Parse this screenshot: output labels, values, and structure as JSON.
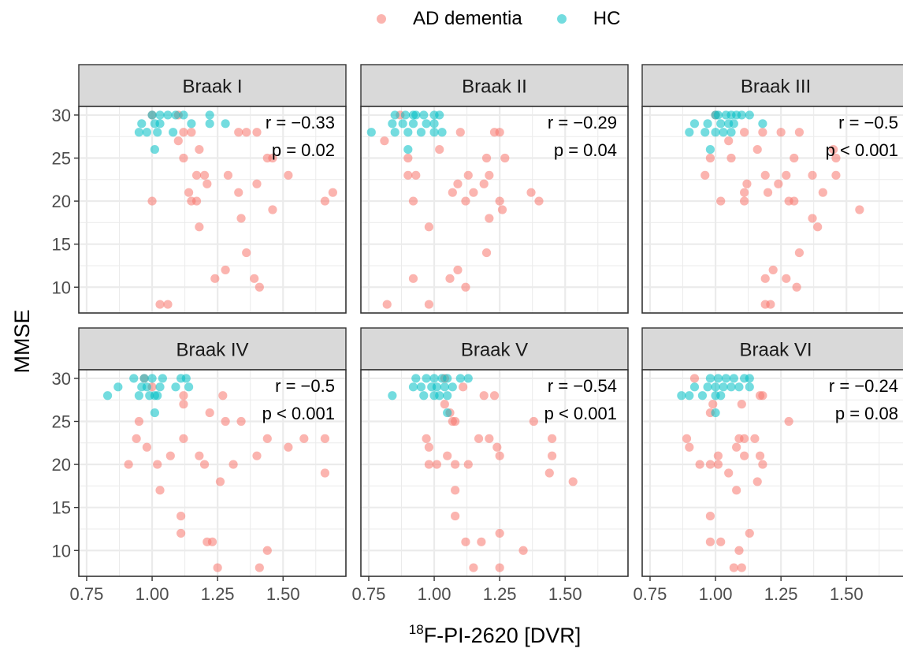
{
  "colors": {
    "ad": "#F8766D",
    "hc": "#00BFC4",
    "strip": "#D9D9D9",
    "grid": "#EBEBEB",
    "border": "#333333"
  },
  "legend": [
    {
      "label": "AD dementia",
      "color": "#F8766D"
    },
    {
      "label": "HC",
      "color": "#00BFC4"
    }
  ],
  "chart_data": {
    "type": "scatter",
    "xlabel_sup": "18",
    "xlabel": "F-PI-2620 [DVR]",
    "ylabel": "MMSE",
    "xlim": [
      0.72,
      1.74
    ],
    "ylim": [
      7,
      31
    ],
    "xticks": [
      0.75,
      1.0,
      1.25,
      1.5
    ],
    "xtick_labels": [
      "0.75",
      "1.00",
      "1.25",
      "1.50"
    ],
    "yticks": [
      10,
      15,
      20,
      25,
      30
    ],
    "ytick_labels": [
      "10",
      "15",
      "20",
      "25",
      "30"
    ],
    "grid": true,
    "legend_position": "top",
    "series_names": [
      "AD dementia",
      "HC"
    ],
    "panels": [
      {
        "title": "Braak I",
        "r": "r = −0.33",
        "p": "p = 0.02",
        "hc": [
          [
            1.0,
            30
          ],
          [
            1.03,
            30
          ],
          [
            1.06,
            30
          ],
          [
            1.09,
            30
          ],
          [
            1.12,
            30
          ],
          [
            1.22,
            30
          ],
          [
            0.96,
            29
          ],
          [
            1.01,
            29
          ],
          [
            1.03,
            29
          ],
          [
            1.15,
            29
          ],
          [
            1.22,
            29
          ],
          [
            1.28,
            29
          ],
          [
            0.98,
            28
          ],
          [
            1.02,
            28
          ],
          [
            0.95,
            28
          ],
          [
            1.08,
            28
          ],
          [
            1.01,
            26
          ]
        ],
        "ad": [
          [
            1.0,
            30
          ],
          [
            1.1,
            30
          ],
          [
            1.15,
            28
          ],
          [
            1.12,
            28
          ],
          [
            1.33,
            28
          ],
          [
            1.36,
            28
          ],
          [
            1.4,
            28
          ],
          [
            1.1,
            27
          ],
          [
            1.18,
            26
          ],
          [
            1.12,
            25
          ],
          [
            1.44,
            25
          ],
          [
            1.46,
            25
          ],
          [
            1.17,
            23
          ],
          [
            1.2,
            23
          ],
          [
            1.29,
            23
          ],
          [
            1.52,
            23
          ],
          [
            1.21,
            22
          ],
          [
            1.4,
            22
          ],
          [
            1.14,
            21
          ],
          [
            1.33,
            21
          ],
          [
            1.69,
            21
          ],
          [
            1.0,
            20
          ],
          [
            1.15,
            20
          ],
          [
            1.17,
            20
          ],
          [
            1.66,
            20
          ],
          [
            1.46,
            19
          ],
          [
            1.34,
            18
          ],
          [
            1.18,
            17
          ],
          [
            1.36,
            14
          ],
          [
            1.28,
            12
          ],
          [
            1.24,
            11
          ],
          [
            1.39,
            11
          ],
          [
            1.41,
            10
          ],
          [
            1.03,
            8
          ],
          [
            1.06,
            8
          ]
        ]
      },
      {
        "title": "Braak II",
        "r": "r = −0.29",
        "p": "p = 0.04",
        "hc": [
          [
            0.85,
            30
          ],
          [
            0.89,
            30
          ],
          [
            0.92,
            30
          ],
          [
            0.93,
            30
          ],
          [
            0.96,
            30
          ],
          [
            1.0,
            30
          ],
          [
            1.02,
            30
          ],
          [
            0.84,
            29
          ],
          [
            0.88,
            29
          ],
          [
            0.92,
            29
          ],
          [
            0.97,
            29
          ],
          [
            1.0,
            29
          ],
          [
            0.76,
            28
          ],
          [
            0.85,
            28
          ],
          [
            0.9,
            28
          ],
          [
            0.95,
            28
          ],
          [
            1.0,
            28
          ],
          [
            1.03,
            28
          ],
          [
            0.9,
            26
          ]
        ],
        "ad": [
          [
            0.87,
            30
          ],
          [
            1.1,
            28
          ],
          [
            1.23,
            28
          ],
          [
            1.25,
            28
          ],
          [
            0.81,
            27
          ],
          [
            1.02,
            26
          ],
          [
            0.9,
            25
          ],
          [
            1.2,
            25
          ],
          [
            1.27,
            25
          ],
          [
            0.9,
            23
          ],
          [
            0.93,
            23
          ],
          [
            1.13,
            23
          ],
          [
            1.21,
            23
          ],
          [
            1.09,
            22
          ],
          [
            1.19,
            22
          ],
          [
            1.07,
            21
          ],
          [
            1.15,
            21
          ],
          [
            1.37,
            21
          ],
          [
            0.92,
            20
          ],
          [
            1.12,
            20
          ],
          [
            1.25,
            20
          ],
          [
            1.4,
            20
          ],
          [
            1.26,
            19
          ],
          [
            1.21,
            18
          ],
          [
            0.98,
            17
          ],
          [
            1.2,
            14
          ],
          [
            1.09,
            12
          ],
          [
            0.92,
            11
          ],
          [
            1.06,
            11
          ],
          [
            1.12,
            10
          ],
          [
            0.82,
            8
          ],
          [
            0.98,
            8
          ]
        ]
      },
      {
        "title": "Braak III",
        "r": "r = −0.5",
        "p": "p < 0.001",
        "hc": [
          [
            1.0,
            30
          ],
          [
            1.01,
            30
          ],
          [
            1.04,
            30
          ],
          [
            1.06,
            30
          ],
          [
            1.08,
            30
          ],
          [
            1.1,
            30
          ],
          [
            1.13,
            30
          ],
          [
            0.92,
            29
          ],
          [
            0.97,
            29
          ],
          [
            1.02,
            29
          ],
          [
            1.05,
            29
          ],
          [
            1.07,
            29
          ],
          [
            1.18,
            29
          ],
          [
            0.9,
            28
          ],
          [
            0.96,
            28
          ],
          [
            1.0,
            28
          ],
          [
            1.03,
            28
          ],
          [
            1.06,
            28
          ],
          [
            0.98,
            26
          ]
        ],
        "ad": [
          [
            1.0,
            30
          ],
          [
            1.11,
            28
          ],
          [
            1.25,
            28
          ],
          [
            1.32,
            28
          ],
          [
            1.18,
            28
          ],
          [
            1.05,
            27
          ],
          [
            1.16,
            26
          ],
          [
            1.45,
            26
          ],
          [
            0.98,
            25
          ],
          [
            1.06,
            25
          ],
          [
            1.3,
            25
          ],
          [
            1.46,
            25
          ],
          [
            0.96,
            23
          ],
          [
            1.19,
            23
          ],
          [
            1.27,
            23
          ],
          [
            1.37,
            23
          ],
          [
            1.46,
            23
          ],
          [
            1.12,
            22
          ],
          [
            1.24,
            22
          ],
          [
            1.11,
            21
          ],
          [
            1.2,
            21
          ],
          [
            1.41,
            21
          ],
          [
            1.02,
            20
          ],
          [
            1.11,
            20
          ],
          [
            1.28,
            20
          ],
          [
            1.3,
            20
          ],
          [
            1.55,
            19
          ],
          [
            1.37,
            18
          ],
          [
            1.39,
            17
          ],
          [
            1.32,
            14
          ],
          [
            1.22,
            12
          ],
          [
            1.19,
            11
          ],
          [
            1.27,
            11
          ],
          [
            1.31,
            10
          ],
          [
            1.19,
            8
          ],
          [
            1.21,
            8
          ]
        ]
      },
      {
        "title": "Braak IV",
        "r": "r = −0.5",
        "p": "p < 0.001",
        "hc": [
          [
            0.93,
            30
          ],
          [
            0.97,
            30
          ],
          [
            1.0,
            30
          ],
          [
            1.04,
            30
          ],
          [
            1.11,
            30
          ],
          [
            1.13,
            30
          ],
          [
            0.87,
            29
          ],
          [
            0.96,
            29
          ],
          [
            0.98,
            29
          ],
          [
            1.03,
            29
          ],
          [
            1.09,
            29
          ],
          [
            1.14,
            29
          ],
          [
            0.83,
            28
          ],
          [
            0.95,
            28
          ],
          [
            0.99,
            28
          ],
          [
            1.01,
            28
          ],
          [
            1.02,
            28
          ],
          [
            1.01,
            26
          ]
        ],
        "ad": [
          [
            0.97,
            30
          ],
          [
            1.0,
            29
          ],
          [
            1.12,
            28
          ],
          [
            1.27,
            28
          ],
          [
            1.12,
            27
          ],
          [
            1.22,
            26
          ],
          [
            0.95,
            25
          ],
          [
            1.28,
            25
          ],
          [
            1.34,
            25
          ],
          [
            0.94,
            23
          ],
          [
            1.12,
            23
          ],
          [
            1.44,
            23
          ],
          [
            1.58,
            23
          ],
          [
            1.66,
            23
          ],
          [
            0.98,
            22
          ],
          [
            1.52,
            22
          ],
          [
            1.07,
            21
          ],
          [
            1.18,
            21
          ],
          [
            1.4,
            21
          ],
          [
            0.91,
            20
          ],
          [
            1.02,
            20
          ],
          [
            1.2,
            20
          ],
          [
            1.31,
            20
          ],
          [
            1.66,
            19
          ],
          [
            1.26,
            18
          ],
          [
            1.03,
            17
          ],
          [
            1.11,
            14
          ],
          [
            1.11,
            12
          ],
          [
            1.21,
            11
          ],
          [
            1.23,
            11
          ],
          [
            1.44,
            10
          ],
          [
            1.25,
            8
          ],
          [
            1.41,
            8
          ]
        ]
      },
      {
        "title": "Braak V",
        "r": "r = −0.54",
        "p": "p < 0.001",
        "hc": [
          [
            0.93,
            30
          ],
          [
            0.97,
            30
          ],
          [
            1.0,
            30
          ],
          [
            1.03,
            30
          ],
          [
            1.05,
            30
          ],
          [
            1.1,
            30
          ],
          [
            1.13,
            30
          ],
          [
            0.92,
            29
          ],
          [
            0.95,
            29
          ],
          [
            0.99,
            29
          ],
          [
            1.01,
            29
          ],
          [
            1.04,
            29
          ],
          [
            1.07,
            29
          ],
          [
            0.84,
            28
          ],
          [
            0.96,
            28
          ],
          [
            1.0,
            28
          ],
          [
            1.02,
            28
          ],
          [
            1.05,
            28
          ],
          [
            1.05,
            26
          ]
        ],
        "ad": [
          [
            1.04,
            30
          ],
          [
            1.11,
            29
          ],
          [
            1.19,
            28
          ],
          [
            1.23,
            28
          ],
          [
            1.04,
            27
          ],
          [
            1.06,
            26
          ],
          [
            1.07,
            25
          ],
          [
            1.08,
            25
          ],
          [
            1.38,
            25
          ],
          [
            0.97,
            23
          ],
          [
            1.17,
            23
          ],
          [
            1.21,
            23
          ],
          [
            1.45,
            23
          ],
          [
            0.98,
            22
          ],
          [
            1.24,
            22
          ],
          [
            1.05,
            21
          ],
          [
            1.25,
            21
          ],
          [
            1.45,
            21
          ],
          [
            0.98,
            20
          ],
          [
            1.01,
            20
          ],
          [
            1.08,
            20
          ],
          [
            1.13,
            20
          ],
          [
            1.44,
            19
          ],
          [
            1.53,
            18
          ],
          [
            1.08,
            17
          ],
          [
            1.08,
            14
          ],
          [
            1.25,
            12
          ],
          [
            1.12,
            11
          ],
          [
            1.18,
            11
          ],
          [
            1.34,
            10
          ],
          [
            1.15,
            8
          ],
          [
            1.25,
            8
          ]
        ]
      },
      {
        "title": "Braak VI",
        "r": "r = −0.24",
        "p": "p = 0.08",
        "hc": [
          [
            0.98,
            30
          ],
          [
            1.01,
            30
          ],
          [
            1.04,
            30
          ],
          [
            1.07,
            30
          ],
          [
            1.11,
            30
          ],
          [
            1.13,
            30
          ],
          [
            0.92,
            29
          ],
          [
            0.97,
            29
          ],
          [
            1.0,
            29
          ],
          [
            1.03,
            29
          ],
          [
            1.06,
            29
          ],
          [
            1.09,
            29
          ],
          [
            1.13,
            29
          ],
          [
            0.87,
            28
          ],
          [
            0.9,
            28
          ],
          [
            0.95,
            28
          ],
          [
            1.0,
            28
          ],
          [
            1.02,
            28
          ],
          [
            1.0,
            26
          ]
        ],
        "ad": [
          [
            0.92,
            30
          ],
          [
            1.17,
            28
          ],
          [
            1.18,
            28
          ],
          [
            0.99,
            27
          ],
          [
            1.1,
            27
          ],
          [
            0.98,
            26
          ],
          [
            1.28,
            25
          ],
          [
            0.89,
            23
          ],
          [
            1.09,
            23
          ],
          [
            1.11,
            23
          ],
          [
            1.15,
            23
          ],
          [
            0.9,
            22
          ],
          [
            1.08,
            22
          ],
          [
            1.01,
            21
          ],
          [
            1.11,
            21
          ],
          [
            1.17,
            21
          ],
          [
            0.94,
            20
          ],
          [
            0.98,
            20
          ],
          [
            1.01,
            20
          ],
          [
            1.18,
            20
          ],
          [
            1.05,
            19
          ],
          [
            1.16,
            18
          ],
          [
            1.08,
            17
          ],
          [
            0.98,
            14
          ],
          [
            1.13,
            12
          ],
          [
            0.98,
            11
          ],
          [
            1.02,
            11
          ],
          [
            1.09,
            10
          ],
          [
            1.07,
            8
          ],
          [
            1.1,
            8
          ]
        ]
      }
    ]
  }
}
